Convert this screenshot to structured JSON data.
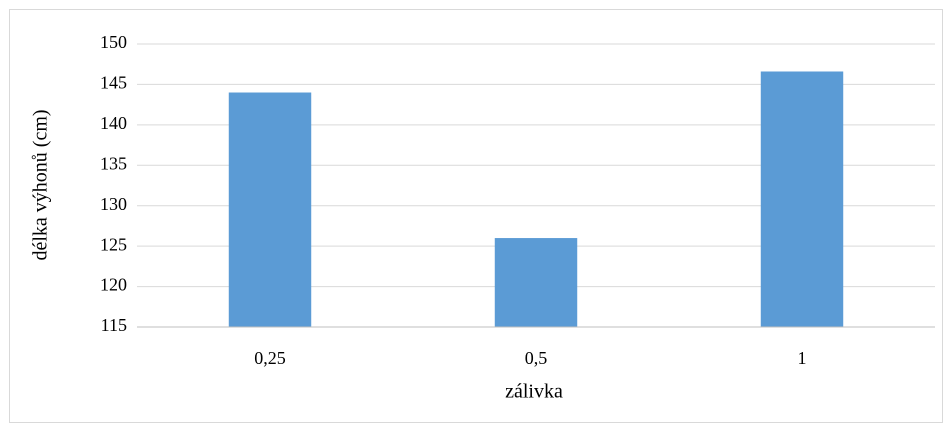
{
  "chart_data": {
    "type": "bar",
    "x_label": "zálivka",
    "y_label": "délka výhonů (cm)",
    "categories": [
      "0,25",
      "0,5",
      "1"
    ],
    "values": [
      144,
      126,
      146.6
    ],
    "color": "#5b9bd5",
    "ylim": [
      115,
      150
    ],
    "yticks": [
      115,
      120,
      125,
      130,
      135,
      140,
      145,
      150
    ],
    "grid": true
  }
}
